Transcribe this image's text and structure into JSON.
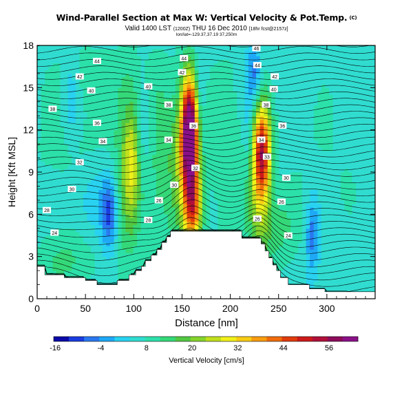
{
  "chart_data": {
    "type": "heatmap",
    "title": "Wind-Parallel Section at Max W: Vertical Velocity & Pot.Temp.",
    "title_mark": "(C)",
    "subtitle": "Valid 1400 LST",
    "subtitle_small_1": "(1200Z)",
    "subtitle_date": "THU 16 Dec 2010",
    "subtitle_small_2": "[18hr fcst@2157z]",
    "note": "lon/lat=-129.37,37.19 37,250m",
    "xlabel": "Distance [nm]",
    "ylabel": "Height [Kft MSL]",
    "xlim": [
      0,
      350
    ],
    "ylim": [
      0,
      18
    ],
    "xticks": [
      "0",
      "50",
      "100",
      "150",
      "200",
      "250",
      "300"
    ],
    "yticks": [
      "0",
      "3",
      "6",
      "9",
      "12",
      "15",
      "18"
    ],
    "grid": false,
    "colorbar": {
      "label": "Vertical Velocity [cm/s]",
      "tick_labels": [
        "-16",
        "-4",
        "8",
        "20",
        "32",
        "44",
        "56"
      ],
      "colors": [
        "#0a0aa8",
        "#1a3ce0",
        "#2a78f0",
        "#1ea8f5",
        "#28d2f0",
        "#30dcd0",
        "#2ce0aa",
        "#34d878",
        "#52c842",
        "#86d42c",
        "#c2e01c",
        "#f0f01a",
        "#f8cc14",
        "#f89c10",
        "#f06c0c",
        "#e03c0c",
        "#cc1a1a",
        "#b0103a",
        "#8c0c5a",
        "#8a1088"
      ]
    },
    "theta_contour_labels": [
      {
        "text": "44",
        "x": 62,
        "y": 16.9
      },
      {
        "text": "42",
        "x": 44,
        "y": 15.8
      },
      {
        "text": "40",
        "x": 56,
        "y": 14.8
      },
      {
        "text": "38",
        "x": 16,
        "y": 13.5
      },
      {
        "text": "36",
        "x": 62,
        "y": 12.5
      },
      {
        "text": "34",
        "x": 68,
        "y": 11.2
      },
      {
        "text": "32",
        "x": 44,
        "y": 9.7
      },
      {
        "text": "30",
        "x": 36,
        "y": 7.8
      },
      {
        "text": "28",
        "x": 10,
        "y": 6.3
      },
      {
        "text": "26",
        "x": 126,
        "y": 7.0
      },
      {
        "text": "24",
        "x": 18,
        "y": 4.7
      },
      {
        "text": "28",
        "x": 115,
        "y": 5.6
      },
      {
        "text": "30",
        "x": 142,
        "y": 8.1
      },
      {
        "text": "34",
        "x": 136,
        "y": 11.3
      },
      {
        "text": "36",
        "x": 162,
        "y": 12.3
      },
      {
        "text": "38",
        "x": 136,
        "y": 13.8
      },
      {
        "text": "40",
        "x": 115,
        "y": 15.1
      },
      {
        "text": "42",
        "x": 150,
        "y": 16.1
      },
      {
        "text": "44",
        "x": 152,
        "y": 17.1
      },
      {
        "text": "46",
        "x": 227,
        "y": 17.8
      },
      {
        "text": "44",
        "x": 228,
        "y": 16.6
      },
      {
        "text": "42",
        "x": 246,
        "y": 15.8
      },
      {
        "text": "40",
        "x": 245,
        "y": 14.9
      },
      {
        "text": "38",
        "x": 237,
        "y": 13.8
      },
      {
        "text": "36",
        "x": 254,
        "y": 12.3
      },
      {
        "text": "34",
        "x": 232,
        "y": 11.3
      },
      {
        "text": "33",
        "x": 238,
        "y": 10.1
      },
      {
        "text": "32",
        "x": 164,
        "y": 9.3
      },
      {
        "text": "30",
        "x": 258,
        "y": 8.6
      },
      {
        "text": "26",
        "x": 253,
        "y": 6.9
      },
      {
        "text": "26",
        "x": 228,
        "y": 5.7
      },
      {
        "text": "24",
        "x": 260,
        "y": 4.5
      }
    ],
    "w_features": [
      {
        "x": 158,
        "y": 12.0,
        "sx": 6,
        "sy": 2.6,
        "value": 58
      },
      {
        "x": 156,
        "y": 9.5,
        "sx": 8,
        "sy": 4.0,
        "value": 30
      },
      {
        "x": 162,
        "y": 6.5,
        "sx": 6,
        "sy": 1.8,
        "value": 28
      },
      {
        "x": 233,
        "y": 10.5,
        "sx": 6,
        "sy": 2.3,
        "value": 42
      },
      {
        "x": 230,
        "y": 8.0,
        "sx": 9,
        "sy": 3.8,
        "value": 18
      },
      {
        "x": 98,
        "y": 10.0,
        "sx": 6,
        "sy": 3.0,
        "value": 18
      },
      {
        "x": 92,
        "y": 8.0,
        "sx": 10,
        "sy": 5.0,
        "value": 10
      },
      {
        "x": 42,
        "y": 10.0,
        "sx": 40,
        "sy": 4.0,
        "value": 5
      },
      {
        "x": 126,
        "y": 9.0,
        "sx": 12,
        "sy": 6.0,
        "value": 9
      },
      {
        "x": 196,
        "y": 10.0,
        "sx": 18,
        "sy": 6.0,
        "value": 6
      },
      {
        "x": 75,
        "y": 6.0,
        "sx": 6,
        "sy": 2.0,
        "value": -16
      },
      {
        "x": 55,
        "y": 7.2,
        "sx": 18,
        "sy": 2.0,
        "value": -7
      },
      {
        "x": 225,
        "y": 16.0,
        "sx": 5,
        "sy": 1.7,
        "value": -14
      },
      {
        "x": 285,
        "y": 4.5,
        "sx": 5,
        "sy": 2.0,
        "value": -14
      },
      {
        "x": 168,
        "y": 14.5,
        "sx": 4,
        "sy": 2.5,
        "value": -8
      },
      {
        "x": 218,
        "y": 12.0,
        "sx": 4,
        "sy": 3.0,
        "value": -7
      },
      {
        "x": 35,
        "y": 14.5,
        "sx": 6,
        "sy": 2.0,
        "value": -8
      },
      {
        "x": 110,
        "y": 11.5,
        "sx": 7,
        "sy": 2.5,
        "value": -6
      },
      {
        "x": 140,
        "y": 9.0,
        "sx": 5,
        "sy": 3.5,
        "value": 5
      },
      {
        "x": 60,
        "y": 16.0,
        "sx": 30,
        "sy": 1.5,
        "value": 5
      },
      {
        "x": 300,
        "y": 10.0,
        "sx": 30,
        "sy": 5.0,
        "value": 3
      },
      {
        "x": 250,
        "y": 5.0,
        "sx": 15,
        "sy": 2.0,
        "value": 8
      },
      {
        "x": 30,
        "y": 2.6,
        "sx": 20,
        "sy": 1.5,
        "value": 8
      }
    ],
    "terrain_km_kft": [
      [
        0,
        2.3
      ],
      [
        8,
        2.3
      ],
      [
        8,
        1.7
      ],
      [
        28,
        1.7
      ],
      [
        28,
        1.5
      ],
      [
        50,
        1.5
      ],
      [
        50,
        1.3
      ],
      [
        62,
        1.3
      ],
      [
        62,
        1.0
      ],
      [
        83,
        1.0
      ],
      [
        83,
        1.3
      ],
      [
        95,
        1.3
      ],
      [
        95,
        1.7
      ],
      [
        102,
        1.7
      ],
      [
        102,
        2.0
      ],
      [
        108,
        2.0
      ],
      [
        108,
        2.3
      ],
      [
        112,
        2.3
      ],
      [
        112,
        2.7
      ],
      [
        118,
        2.7
      ],
      [
        118,
        3.1
      ],
      [
        124,
        3.1
      ],
      [
        124,
        3.5
      ],
      [
        129,
        3.5
      ],
      [
        129,
        4.0
      ],
      [
        134,
        4.0
      ],
      [
        134,
        4.4
      ],
      [
        138,
        4.4
      ],
      [
        138,
        4.8
      ],
      [
        212,
        4.8
      ],
      [
        212,
        4.3
      ],
      [
        232,
        4.3
      ],
      [
        232,
        3.9
      ],
      [
        236,
        3.9
      ],
      [
        236,
        3.4
      ],
      [
        240,
        3.4
      ],
      [
        240,
        2.9
      ],
      [
        244,
        2.9
      ],
      [
        244,
        2.4
      ],
      [
        248,
        2.4
      ],
      [
        248,
        2.0
      ],
      [
        252,
        2.0
      ],
      [
        252,
        1.5
      ],
      [
        260,
        1.5
      ],
      [
        260,
        1.0
      ],
      [
        282,
        1.0
      ],
      [
        282,
        0.7
      ],
      [
        298,
        0.7
      ],
      [
        298,
        0.5
      ],
      [
        350,
        0.5
      ]
    ]
  }
}
